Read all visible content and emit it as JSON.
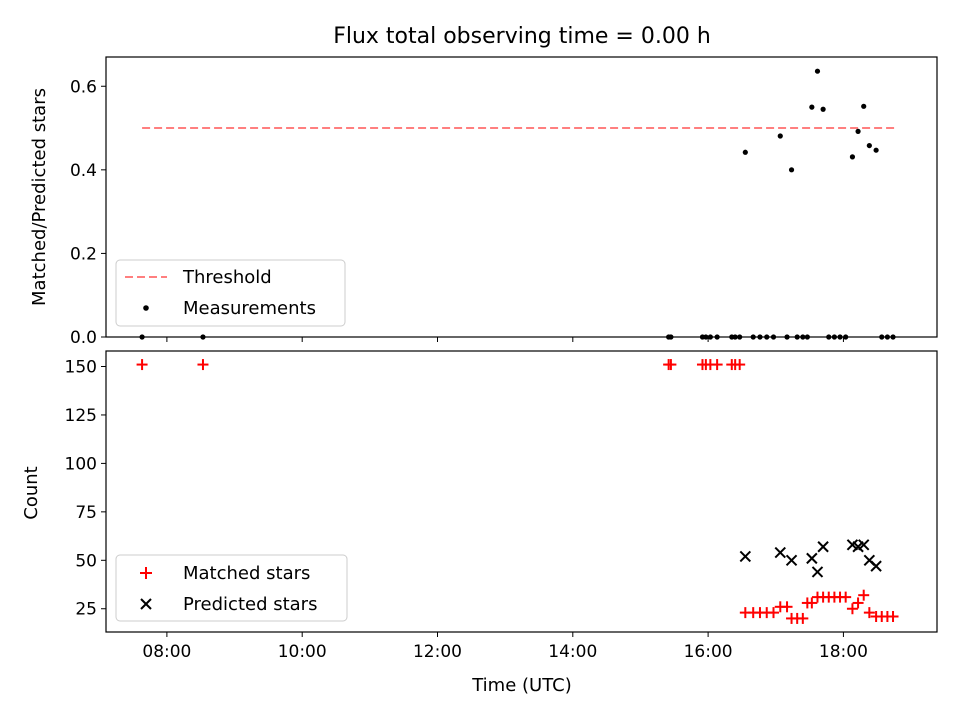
{
  "chart_data": [
    {
      "type": "scatter",
      "title": "Flux total observing time = 0.00 h",
      "xlabel": "",
      "ylabel": "Matched/Predicted stars",
      "xlim": [
        "07:06",
        "19:23"
      ],
      "ylim": [
        0,
        0.67
      ],
      "x_ticks": [
        "08:00",
        "10:00",
        "12:00",
        "14:00",
        "16:00",
        "18:00"
      ],
      "y_ticks": [
        0.0,
        0.2,
        0.4,
        0.6
      ],
      "y_tick_labels": [
        "0.0",
        "0.2",
        "0.4",
        "0.6"
      ],
      "legend_position": "lower-left",
      "threshold": {
        "name": "Threshold",
        "value": 0.5,
        "x_range": [
          "07:38",
          "18:45"
        ],
        "color": "#ff7f7f",
        "style": "dashed"
      },
      "series": [
        {
          "name": "Measurements",
          "marker": "dot",
          "color": "#000000",
          "points": [
            {
              "x": "07:38",
              "y": 0.0
            },
            {
              "x": "08:32",
              "y": 0.0
            },
            {
              "x": "15:25",
              "y": 0.0
            },
            {
              "x": "15:27",
              "y": 0.0
            },
            {
              "x": "15:55",
              "y": 0.0
            },
            {
              "x": "15:58",
              "y": 0.0
            },
            {
              "x": "16:02",
              "y": 0.0
            },
            {
              "x": "16:08",
              "y": 0.0
            },
            {
              "x": "16:21",
              "y": 0.0
            },
            {
              "x": "16:24",
              "y": 0.0
            },
            {
              "x": "16:28",
              "y": 0.0
            },
            {
              "x": "16:33",
              "y": 0.442
            },
            {
              "x": "16:40",
              "y": 0.0
            },
            {
              "x": "16:46",
              "y": 0.0
            },
            {
              "x": "16:52",
              "y": 0.0
            },
            {
              "x": "16:58",
              "y": 0.0
            },
            {
              "x": "17:04",
              "y": 0.481
            },
            {
              "x": "17:10",
              "y": 0.0
            },
            {
              "x": "17:14",
              "y": 0.4
            },
            {
              "x": "17:19",
              "y": 0.0
            },
            {
              "x": "17:24",
              "y": 0.0
            },
            {
              "x": "17:28",
              "y": 0.0
            },
            {
              "x": "17:32",
              "y": 0.55
            },
            {
              "x": "17:37",
              "y": 0.636
            },
            {
              "x": "17:42",
              "y": 0.545
            },
            {
              "x": "17:47",
              "y": 0.0
            },
            {
              "x": "17:52",
              "y": 0.0
            },
            {
              "x": "17:57",
              "y": 0.0
            },
            {
              "x": "18:02",
              "y": 0.0
            },
            {
              "x": "18:08",
              "y": 0.431
            },
            {
              "x": "18:13",
              "y": 0.492
            },
            {
              "x": "18:18",
              "y": 0.552
            },
            {
              "x": "18:23",
              "y": 0.458
            },
            {
              "x": "18:29",
              "y": 0.447
            },
            {
              "x": "18:34",
              "y": 0.0
            },
            {
              "x": "18:39",
              "y": 0.0
            },
            {
              "x": "18:44",
              "y": 0.0
            }
          ]
        }
      ]
    },
    {
      "type": "scatter",
      "title": "",
      "xlabel": "Time (UTC)",
      "ylabel": "Count",
      "xlim": [
        "07:06",
        "19:23"
      ],
      "ylim": [
        13,
        158
      ],
      "x_ticks": [
        "08:00",
        "10:00",
        "12:00",
        "14:00",
        "16:00",
        "18:00"
      ],
      "y_ticks": [
        25,
        50,
        75,
        100,
        125,
        150
      ],
      "legend_position": "lower-left",
      "series": [
        {
          "name": "Matched stars",
          "marker": "plus",
          "color": "#ff0000",
          "points": [
            {
              "x": "07:38",
              "y": 151
            },
            {
              "x": "08:32",
              "y": 151
            },
            {
              "x": "15:25",
              "y": 151
            },
            {
              "x": "15:27",
              "y": 151
            },
            {
              "x": "15:55",
              "y": 151
            },
            {
              "x": "15:58",
              "y": 151
            },
            {
              "x": "16:02",
              "y": 151
            },
            {
              "x": "16:08",
              "y": 151
            },
            {
              "x": "16:21",
              "y": 151
            },
            {
              "x": "16:24",
              "y": 151
            },
            {
              "x": "16:28",
              "y": 151
            },
            {
              "x": "16:33",
              "y": 23
            },
            {
              "x": "16:40",
              "y": 23
            },
            {
              "x": "16:46",
              "y": 23
            },
            {
              "x": "16:52",
              "y": 23
            },
            {
              "x": "16:58",
              "y": 23
            },
            {
              "x": "17:04",
              "y": 26
            },
            {
              "x": "17:10",
              "y": 26
            },
            {
              "x": "17:14",
              "y": 20
            },
            {
              "x": "17:19",
              "y": 20
            },
            {
              "x": "17:24",
              "y": 20
            },
            {
              "x": "17:28",
              "y": 28
            },
            {
              "x": "17:32",
              "y": 28
            },
            {
              "x": "17:37",
              "y": 31
            },
            {
              "x": "17:42",
              "y": 31
            },
            {
              "x": "17:47",
              "y": 31
            },
            {
              "x": "17:52",
              "y": 31
            },
            {
              "x": "17:57",
              "y": 31
            },
            {
              "x": "18:02",
              "y": 31
            },
            {
              "x": "18:08",
              "y": 25
            },
            {
              "x": "18:13",
              "y": 28
            },
            {
              "x": "18:18",
              "y": 32
            },
            {
              "x": "18:23",
              "y": 23
            },
            {
              "x": "18:29",
              "y": 21
            },
            {
              "x": "18:34",
              "y": 21
            },
            {
              "x": "18:39",
              "y": 21
            },
            {
              "x": "18:44",
              "y": 21
            }
          ]
        },
        {
          "name": "Predicted stars",
          "marker": "x",
          "color": "#000000",
          "points": [
            {
              "x": "16:33",
              "y": 52
            },
            {
              "x": "17:04",
              "y": 54
            },
            {
              "x": "17:14",
              "y": 50
            },
            {
              "x": "17:32",
              "y": 51
            },
            {
              "x": "17:37",
              "y": 44
            },
            {
              "x": "17:42",
              "y": 57
            },
            {
              "x": "18:08",
              "y": 58
            },
            {
              "x": "18:13",
              "y": 57
            },
            {
              "x": "18:18",
              "y": 58
            },
            {
              "x": "18:23",
              "y": 50
            },
            {
              "x": "18:29",
              "y": 47
            }
          ]
        }
      ]
    }
  ]
}
